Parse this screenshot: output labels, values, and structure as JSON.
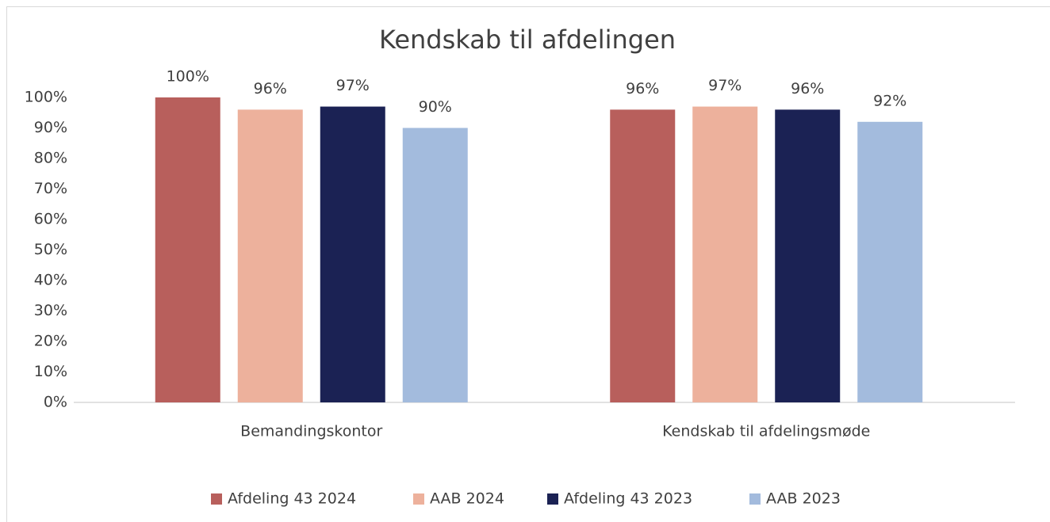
{
  "chart_data": {
    "type": "bar",
    "title": "Kendskab til afdelingen",
    "categories": [
      "Bemandingskontor",
      "Kendskab til afdelingsmøde"
    ],
    "series": [
      {
        "name": "Afdeling 43 2024",
        "color": "#b85f5c",
        "values": [
          100,
          96
        ],
        "value_labels": [
          "100%",
          "96%"
        ]
      },
      {
        "name": "AAB 2024",
        "color": "#edb19c",
        "values": [
          96,
          97
        ],
        "value_labels": [
          "96%",
          "97%"
        ]
      },
      {
        "name": "Afdeling 43 2023",
        "color": "#1b2254",
        "values": [
          97,
          96
        ],
        "value_labels": [
          "97%",
          "96%"
        ]
      },
      {
        "name": "AAB 2023",
        "color": "#a3bbdd",
        "values": [
          90,
          92
        ],
        "value_labels": [
          "90%",
          "92%"
        ]
      }
    ],
    "ylim": [
      0,
      100
    ],
    "yticks": [
      {
        "value": 0,
        "label": "0%"
      },
      {
        "value": 10,
        "label": "10%"
      },
      {
        "value": 20,
        "label": "20%"
      },
      {
        "value": 30,
        "label": "30%"
      },
      {
        "value": 40,
        "label": "40%"
      },
      {
        "value": 50,
        "label": "50%"
      },
      {
        "value": 60,
        "label": "60%"
      },
      {
        "value": 70,
        "label": "70%"
      },
      {
        "value": 80,
        "label": "80%"
      },
      {
        "value": 90,
        "label": "90%"
      },
      {
        "value": 100,
        "label": "100%"
      }
    ],
    "grid": false,
    "legend": "bottom"
  }
}
